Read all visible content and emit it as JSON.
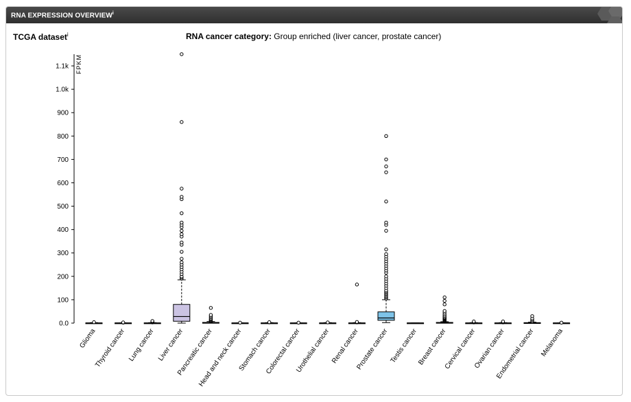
{
  "panel": {
    "title": "RNA EXPRESSION OVERVIEW",
    "info_mark": "i"
  },
  "dataset": {
    "label": "TCGA dataset",
    "info_mark": "i"
  },
  "category": {
    "label": "RNA cancer category:",
    "value": "Group enriched (liver cancer, prostate cancer)"
  },
  "colors": {
    "liver_box": "#cbc3e3",
    "prostate_box": "#7ec3e8",
    "default_box": "#ffffff",
    "header_bg": "#333333"
  },
  "chart_data": {
    "type": "boxplot",
    "ylabel": "FPKM",
    "ylim": [
      0,
      1150
    ],
    "yticks": [
      0,
      100,
      200,
      300,
      400,
      500,
      600,
      700,
      800,
      900,
      1000,
      1100
    ],
    "ytick_labels": [
      "0.0",
      "100",
      "200",
      "300",
      "400",
      "500",
      "600",
      "700",
      "800",
      "900",
      "1.0k",
      "1.1k"
    ],
    "categories": [
      "Glioma",
      "Thyroid cancer",
      "Lung cancer",
      "Liver cancer",
      "Pancreatic cancer",
      "Head and neck cancer",
      "Stomach cancer",
      "Colorectal cancer",
      "Urothelial cancer",
      "Renal cancer",
      "Prostate cancer",
      "Testis cancer",
      "Breast cancer",
      "Cervical cancer",
      "Ovarian cancer",
      "Endometrial cancer",
      "Melanoma"
    ],
    "boxes": [
      {
        "min": 0,
        "q1": 0,
        "median": 0.5,
        "q3": 1,
        "max": 2,
        "outliers": [
          4
        ]
      },
      {
        "min": 0,
        "q1": 0,
        "median": 0.5,
        "q3": 1,
        "max": 1,
        "outliers": [
          2,
          3
        ]
      },
      {
        "min": 0,
        "q1": 0,
        "median": 0.5,
        "q3": 1,
        "max": 2,
        "outliers": [
          3,
          5,
          7,
          9
        ]
      },
      {
        "min": 0,
        "q1": 8,
        "median": 28,
        "q3": 80,
        "max": 185,
        "outliers": [
          190,
          195,
          200,
          210,
          220,
          230,
          240,
          250,
          260,
          275,
          305,
          335,
          345,
          370,
          380,
          395,
          410,
          420,
          430,
          470,
          530,
          540,
          575,
          860,
          1150
        ]
      },
      {
        "min": 0,
        "q1": 0,
        "median": 1,
        "q3": 3,
        "max": 7,
        "outliers": [
          8,
          10,
          13,
          16,
          20,
          25,
          30,
          35,
          65
        ]
      },
      {
        "min": 0,
        "q1": 0,
        "median": 0.5,
        "q3": 1,
        "max": 1,
        "outliers": [
          2
        ]
      },
      {
        "min": 0,
        "q1": 0,
        "median": 0.5,
        "q3": 1,
        "max": 2,
        "outliers": [
          3,
          4
        ]
      },
      {
        "min": 0,
        "q1": 0,
        "median": 0.5,
        "q3": 1,
        "max": 1,
        "outliers": [
          2
        ]
      },
      {
        "min": 0,
        "q1": 0,
        "median": 0.5,
        "q3": 1,
        "max": 2,
        "outliers": [
          3
        ]
      },
      {
        "min": 0,
        "q1": 0,
        "median": 0.5,
        "q3": 1,
        "max": 2,
        "outliers": [
          3,
          5,
          165
        ]
      },
      {
        "min": 2,
        "q1": 12,
        "median": 22,
        "q3": 48,
        "max": 100,
        "outliers": [
          105,
          110,
          115,
          120,
          125,
          130,
          135,
          140,
          150,
          160,
          170,
          180,
          190,
          200,
          215,
          225,
          235,
          245,
          255,
          265,
          275,
          285,
          295,
          315,
          395,
          420,
          430,
          520,
          645,
          670,
          700,
          800
        ]
      },
      {
        "min": 0,
        "q1": 0,
        "median": 0.5,
        "q3": 1,
        "max": 1,
        "outliers": []
      },
      {
        "min": 0,
        "q1": 1,
        "median": 2,
        "q3": 3,
        "max": 6,
        "outliers": [
          8,
          10,
          12,
          15,
          18,
          20,
          23,
          27,
          32,
          38,
          45,
          52,
          80,
          95,
          110
        ]
      },
      {
        "min": 0,
        "q1": 0,
        "median": 0.5,
        "q3": 1,
        "max": 2,
        "outliers": [
          3,
          5,
          7
        ]
      },
      {
        "min": 0,
        "q1": 0,
        "median": 0.5,
        "q3": 1,
        "max": 2,
        "outliers": [
          3,
          5,
          7
        ]
      },
      {
        "min": 0,
        "q1": 0,
        "median": 1,
        "q3": 2,
        "max": 4,
        "outliers": [
          6,
          10,
          15,
          20,
          30
        ]
      },
      {
        "min": 0,
        "q1": 0,
        "median": 0.5,
        "q3": 1,
        "max": 1,
        "outliers": [
          2
        ]
      }
    ],
    "highlighted": [
      "Liver cancer",
      "Prostate cancer"
    ],
    "grid": false
  }
}
